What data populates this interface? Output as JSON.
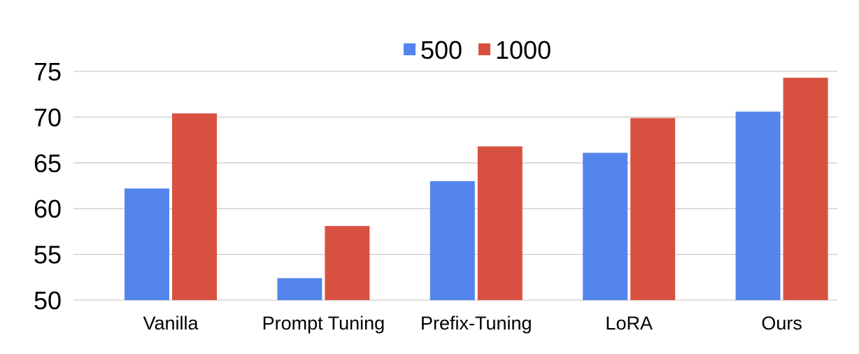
{
  "chart_data": {
    "type": "bar",
    "title": "",
    "xlabel": "",
    "ylabel": "",
    "categories": [
      "Vanilla",
      "Prompt Tuning",
      "Prefix-Tuning",
      "LoRA",
      "Ours"
    ],
    "series": [
      {
        "name": "500",
        "color": "#5485EC",
        "values": [
          62.2,
          52.4,
          63.0,
          66.1,
          70.6
        ]
      },
      {
        "name": "1000",
        "color": "#D85140",
        "values": [
          70.4,
          58.1,
          66.8,
          69.9,
          74.3
        ]
      }
    ],
    "ylim": [
      50,
      75
    ],
    "yticks": [
      50,
      55,
      60,
      65,
      70,
      75
    ],
    "grid": true,
    "gridColor": "#CCCCCC",
    "legend_position": "top"
  }
}
